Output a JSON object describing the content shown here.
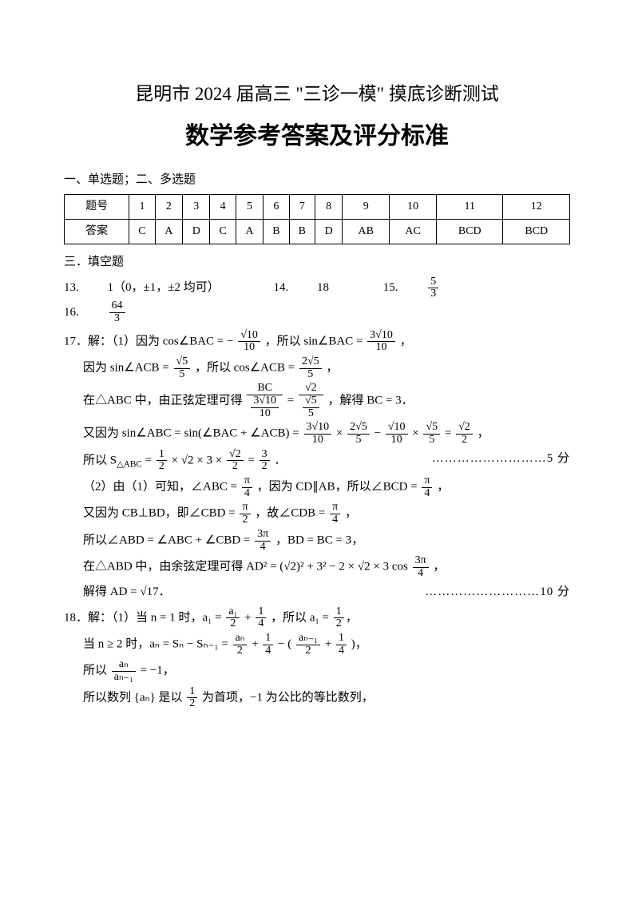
{
  "title1": "昆明市 2024 届高三 \"三诊一模\" 摸底诊断测试",
  "title2": "数学参考答案及评分标准",
  "section_mc": "一、单选题；二、多选题",
  "table": {
    "headers": [
      "题号",
      "1",
      "2",
      "3",
      "4",
      "5",
      "6",
      "7",
      "8",
      "9",
      "10",
      "11",
      "12"
    ],
    "answers": [
      "答案",
      "C",
      "A",
      "D",
      "C",
      "A",
      "B",
      "B",
      "D",
      "AB",
      "AC",
      "BCD",
      "BCD"
    ],
    "col_count": 13
  },
  "section_fill": "三．填空题",
  "fill": {
    "q13_label": "13.",
    "q13_ans": "1（0，±1，±2 均可）",
    "q14_label": "14.",
    "q14_ans": "18",
    "q15_label": "15.",
    "q15_num": "5",
    "q15_den": "3",
    "q16_label": "16.",
    "q16_num": "64",
    "q16_den": "3"
  },
  "q17": {
    "head": "17．解：（1）因为 cos∠BAC = −",
    "f1n": "√10",
    "f1d": "10",
    "so_sin": "，所以 sin∠BAC =",
    "f2n": "3√10",
    "f2d": "10",
    "comma": "，",
    "l2a": "因为 sin∠ACB =",
    "f3n": "√5",
    "f3d": "5",
    "l2b": "，所以 cos∠ACB =",
    "f4n": "2√5",
    "f4d": "5",
    "l3a": "在△ABC 中，由正弦定理可得",
    "f5n": "BC",
    "f6n": "√2",
    "l3b": "，解得 BC = 3．",
    "l4a": "又因为 sin∠ABC = sin(∠BAC + ∠ACB) =",
    "f7n": "3√10",
    "f7d": "10",
    "times": "×",
    "f8n": "2√5",
    "f8d": "5",
    "minus": "−",
    "f9n": "√10",
    "f9d": "10",
    "f10n": "√5",
    "f10d": "5",
    "eq": "=",
    "f11n": "√2",
    "f11d": "2",
    "l5a": "所以 S",
    "tri": "△ABC",
    "l5b": " =",
    "f12n": "1",
    "f12d": "2",
    "l5c": "× √2 × 3 ×",
    "f13n": "√2",
    "f13d": "2",
    "f14n": "3",
    "f14d": "2",
    "period": "．",
    "pts5": "………………………5 分",
    "p2a": "（2）由（1）可知，∠ABC =",
    "pi4n": "π",
    "pi4d": "4",
    "p2b": "，因为 CD∥AB，所以∠BCD =",
    "p2c": "又因为 CB⊥BD，即∠CBD =",
    "pi2n": "π",
    "pi2d": "2",
    "p2d": "，故∠CDB =",
    "p3a": "所以∠ABD = ∠ABC + ∠CBD =",
    "f3pn": "3π",
    "f3pd": "4",
    "p3b": "，BD = BC = 3，",
    "p4a": "在△ABD 中，由余弦定理可得 AD² = (√2)² + 3² − 2 × √2 × 3 cos",
    "p5": "解得 AD = √17．",
    "pts10": "………………………10 分"
  },
  "q18": {
    "head": "18．解：（1）当 n = 1 时，a₁ =",
    "f1n": "a₁",
    "f1d": "2",
    "plus": "+",
    "f14n": "1",
    "f14d": "4",
    "so": "，所以 a₁ =",
    "f12n": "1",
    "f12d": "2",
    "l2a": "当 n ≥ 2 时，aₙ = Sₙ − Sₙ₋₁ =",
    "f2n": "aₙ",
    "f2d": "2",
    "minus": "− (",
    "f3n": "aₙ₋₁",
    "f3d": "2",
    "close": ")，",
    "l3a": "所以",
    "f4n": "aₙ",
    "f4d": "aₙ₋₁",
    "l3b": "= −1，",
    "l4": "所以数列 {aₙ} 是以",
    "l4b": "为首项，−1 为公比的等比数列，"
  }
}
